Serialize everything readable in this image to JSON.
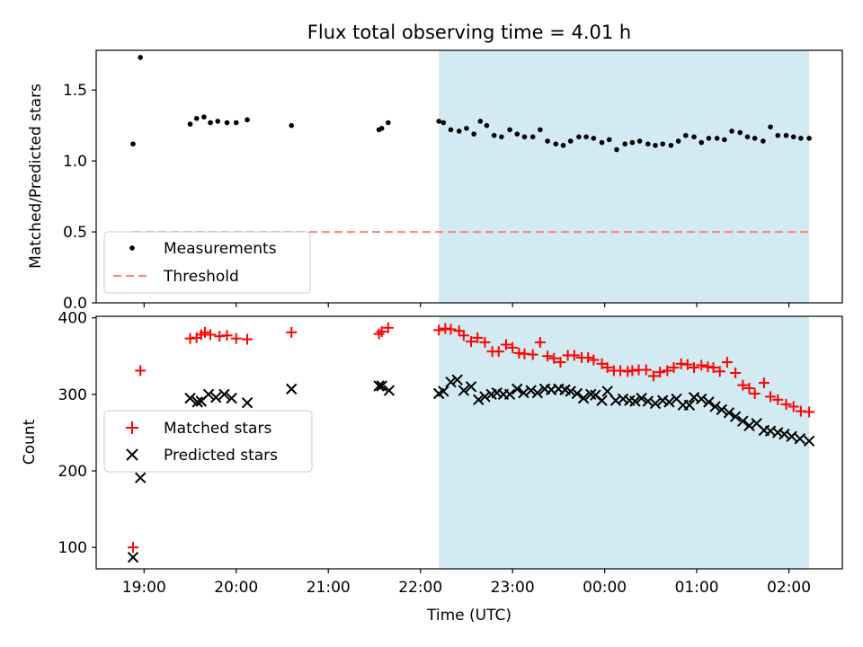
{
  "chart_data": {
    "type": "scatter",
    "title": "Flux total observing time = 4.01 h",
    "xlabel": "Time (UTC)",
    "x_ticks": [
      "19:00",
      "20:00",
      "21:00",
      "22:00",
      "23:00",
      "00:00",
      "01:00",
      "02:00"
    ],
    "x_tick_hours": [
      19,
      20,
      21,
      22,
      23,
      24,
      25,
      26
    ],
    "xlim": [
      18.48,
      26.58
    ],
    "shaded_span": [
      22.2,
      26.22
    ],
    "colors": {
      "span": "#add8e6",
      "matched": "#ff0000",
      "predicted": "#000000",
      "threshold": "#ff7f7f",
      "measurement": "#000000"
    },
    "top": {
      "ylabel": "Matched/Predicted stars",
      "ylim": [
        0,
        1.78
      ],
      "y_ticks": [
        "0.0",
        "0.5",
        "1.0",
        "1.5"
      ],
      "y_tick_values": [
        0,
        0.5,
        1.0,
        1.5
      ],
      "threshold": {
        "label": "Threshold",
        "value": 0.5,
        "x_range": [
          18.88,
          26.22
        ]
      },
      "measurements": {
        "label": "Measurements",
        "points": [
          [
            18.88,
            1.12
          ],
          [
            18.96,
            1.73
          ],
          [
            19.5,
            1.26
          ],
          [
            19.57,
            1.3
          ],
          [
            19.65,
            1.31
          ],
          [
            19.72,
            1.27
          ],
          [
            19.8,
            1.28
          ],
          [
            19.9,
            1.27
          ],
          [
            20,
            1.27
          ],
          [
            20.12,
            1.29
          ],
          [
            20.6,
            1.25
          ],
          [
            21.55,
            1.22
          ],
          [
            21.58,
            1.23
          ],
          [
            21.65,
            1.27
          ],
          [
            22.2,
            1.28
          ],
          [
            22.25,
            1.27
          ],
          [
            22.33,
            1.22
          ],
          [
            22.42,
            1.21
          ],
          [
            22.5,
            1.23
          ],
          [
            22.58,
            1.19
          ],
          [
            22.65,
            1.28
          ],
          [
            22.72,
            1.25
          ],
          [
            22.8,
            1.18
          ],
          [
            22.88,
            1.17
          ],
          [
            22.97,
            1.22
          ],
          [
            23.05,
            1.19
          ],
          [
            23.13,
            1.17
          ],
          [
            23.22,
            1.17
          ],
          [
            23.3,
            1.22
          ],
          [
            23.38,
            1.14
          ],
          [
            23.47,
            1.12
          ],
          [
            23.55,
            1.11
          ],
          [
            23.63,
            1.14
          ],
          [
            23.72,
            1.17
          ],
          [
            23.8,
            1.17
          ],
          [
            23.88,
            1.16
          ],
          [
            23.97,
            1.13
          ],
          [
            24.05,
            1.15
          ],
          [
            24.13,
            1.08
          ],
          [
            24.22,
            1.12
          ],
          [
            24.3,
            1.13
          ],
          [
            24.38,
            1.14
          ],
          [
            24.47,
            1.12
          ],
          [
            24.55,
            1.11
          ],
          [
            24.63,
            1.12
          ],
          [
            24.72,
            1.11
          ],
          [
            24.8,
            1.14
          ],
          [
            24.88,
            1.18
          ],
          [
            24.97,
            1.17
          ],
          [
            25.05,
            1.13
          ],
          [
            25.13,
            1.16
          ],
          [
            25.22,
            1.16
          ],
          [
            25.3,
            1.15
          ],
          [
            25.38,
            1.21
          ],
          [
            25.47,
            1.2
          ],
          [
            25.55,
            1.17
          ],
          [
            25.63,
            1.16
          ],
          [
            25.72,
            1.14
          ],
          [
            25.8,
            1.24
          ],
          [
            25.88,
            1.18
          ],
          [
            25.97,
            1.18
          ],
          [
            26.05,
            1.17
          ],
          [
            26.13,
            1.16
          ],
          [
            26.22,
            1.16
          ]
        ]
      },
      "legend_loc": "lower-left"
    },
    "bottom": {
      "ylabel": "Count",
      "ylim": [
        72,
        402
      ],
      "y_ticks": [
        "100",
        "200",
        "300",
        "400"
      ],
      "y_tick_values": [
        100,
        200,
        300,
        400
      ],
      "legend_loc": "center-left",
      "series": [
        {
          "name": "Matched stars",
          "marker": "plus",
          "points": [
            [
              18.88,
              100
            ],
            [
              18.96,
              331
            ],
            [
              19.5,
              373
            ],
            [
              19.57,
              374
            ],
            [
              19.62,
              378
            ],
            [
              19.66,
              381
            ],
            [
              19.72,
              378
            ],
            [
              19.82,
              376
            ],
            [
              19.9,
              377
            ],
            [
              20,
              373
            ],
            [
              20.12,
              372
            ],
            [
              20.6,
              381
            ],
            [
              21.55,
              379
            ],
            [
              21.58,
              382
            ],
            [
              21.65,
              387
            ],
            [
              22.2,
              384
            ],
            [
              22.27,
              386
            ],
            [
              22.33,
              385
            ],
            [
              22.42,
              383
            ],
            [
              22.47,
              377
            ],
            [
              22.55,
              369
            ],
            [
              22.62,
              374
            ],
            [
              22.7,
              368
            ],
            [
              22.78,
              356
            ],
            [
              22.85,
              356
            ],
            [
              22.93,
              365
            ],
            [
              23,
              361
            ],
            [
              23.07,
              354
            ],
            [
              23.13,
              353
            ],
            [
              23.22,
              352
            ],
            [
              23.3,
              368
            ],
            [
              23.38,
              350
            ],
            [
              23.45,
              347
            ],
            [
              23.52,
              342
            ],
            [
              23.6,
              351
            ],
            [
              23.67,
              351
            ],
            [
              23.75,
              348
            ],
            [
              23.82,
              348
            ],
            [
              23.88,
              345
            ],
            [
              23.97,
              340
            ],
            [
              24.03,
              335
            ],
            [
              24.1,
              331
            ],
            [
              24.17,
              331
            ],
            [
              24.25,
              330
            ],
            [
              24.3,
              331
            ],
            [
              24.37,
              332
            ],
            [
              24.45,
              332
            ],
            [
              24.53,
              324
            ],
            [
              24.6,
              329
            ],
            [
              24.68,
              331
            ],
            [
              24.75,
              335
            ],
            [
              24.83,
              340
            ],
            [
              24.9,
              339
            ],
            [
              24.97,
              335
            ],
            [
              25.05,
              338
            ],
            [
              25.12,
              336
            ],
            [
              25.18,
              335
            ],
            [
              25.25,
              330
            ],
            [
              25.33,
              342
            ],
            [
              25.42,
              328
            ],
            [
              25.5,
              312
            ],
            [
              25.57,
              308
            ],
            [
              25.63,
              301
            ],
            [
              25.73,
              315
            ],
            [
              25.8,
              297
            ],
            [
              25.88,
              293
            ],
            [
              25.97,
              287
            ],
            [
              26.05,
              284
            ],
            [
              26.13,
              278
            ],
            [
              26.22,
              277
            ]
          ]
        },
        {
          "name": "Predicted stars",
          "marker": "x",
          "points": [
            [
              18.88,
              87
            ],
            [
              18.96,
              191
            ],
            [
              19.5,
              295
            ],
            [
              19.58,
              290
            ],
            [
              19.62,
              291
            ],
            [
              19.7,
              300
            ],
            [
              19.78,
              296
            ],
            [
              19.87,
              300
            ],
            [
              19.95,
              295
            ],
            [
              20.12,
              289
            ],
            [
              20.6,
              307
            ],
            [
              21.55,
              311
            ],
            [
              21.58,
              311
            ],
            [
              21.66,
              305
            ],
            [
              22.2,
              301
            ],
            [
              22.25,
              304
            ],
            [
              22.33,
              316
            ],
            [
              22.4,
              319
            ],
            [
              22.47,
              305
            ],
            [
              22.55,
              310
            ],
            [
              22.63,
              293
            ],
            [
              22.7,
              297
            ],
            [
              22.77,
              300
            ],
            [
              22.83,
              302
            ],
            [
              22.9,
              300
            ],
            [
              22.97,
              300
            ],
            [
              23.05,
              307
            ],
            [
              23.12,
              302
            ],
            [
              23.2,
              305
            ],
            [
              23.27,
              302
            ],
            [
              23.35,
              307
            ],
            [
              23.42,
              306
            ],
            [
              23.5,
              307
            ],
            [
              23.57,
              306
            ],
            [
              23.63,
              304
            ],
            [
              23.7,
              301
            ],
            [
              23.77,
              295
            ],
            [
              23.85,
              300
            ],
            [
              23.9,
              299
            ],
            [
              23.97,
              292
            ],
            [
              24.03,
              304
            ],
            [
              24.12,
              292
            ],
            [
              24.2,
              294
            ],
            [
              24.27,
              292
            ],
            [
              24.33,
              291
            ],
            [
              24.4,
              295
            ],
            [
              24.47,
              291
            ],
            [
              24.55,
              288
            ],
            [
              24.63,
              292
            ],
            [
              24.7,
              290
            ],
            [
              24.78,
              294
            ],
            [
              24.85,
              286
            ],
            [
              24.92,
              286
            ],
            [
              24.97,
              296
            ],
            [
              25.05,
              294
            ],
            [
              25.13,
              290
            ],
            [
              25.2,
              284
            ],
            [
              25.27,
              280
            ],
            [
              25.35,
              276
            ],
            [
              25.42,
              271
            ],
            [
              25.5,
              265
            ],
            [
              25.57,
              259
            ],
            [
              25.65,
              262
            ],
            [
              25.73,
              253
            ],
            [
              25.8,
              252
            ],
            [
              25.88,
              250
            ],
            [
              25.95,
              248
            ],
            [
              26.03,
              245
            ],
            [
              26.12,
              242
            ],
            [
              26.22,
              239
            ]
          ]
        }
      ]
    }
  }
}
